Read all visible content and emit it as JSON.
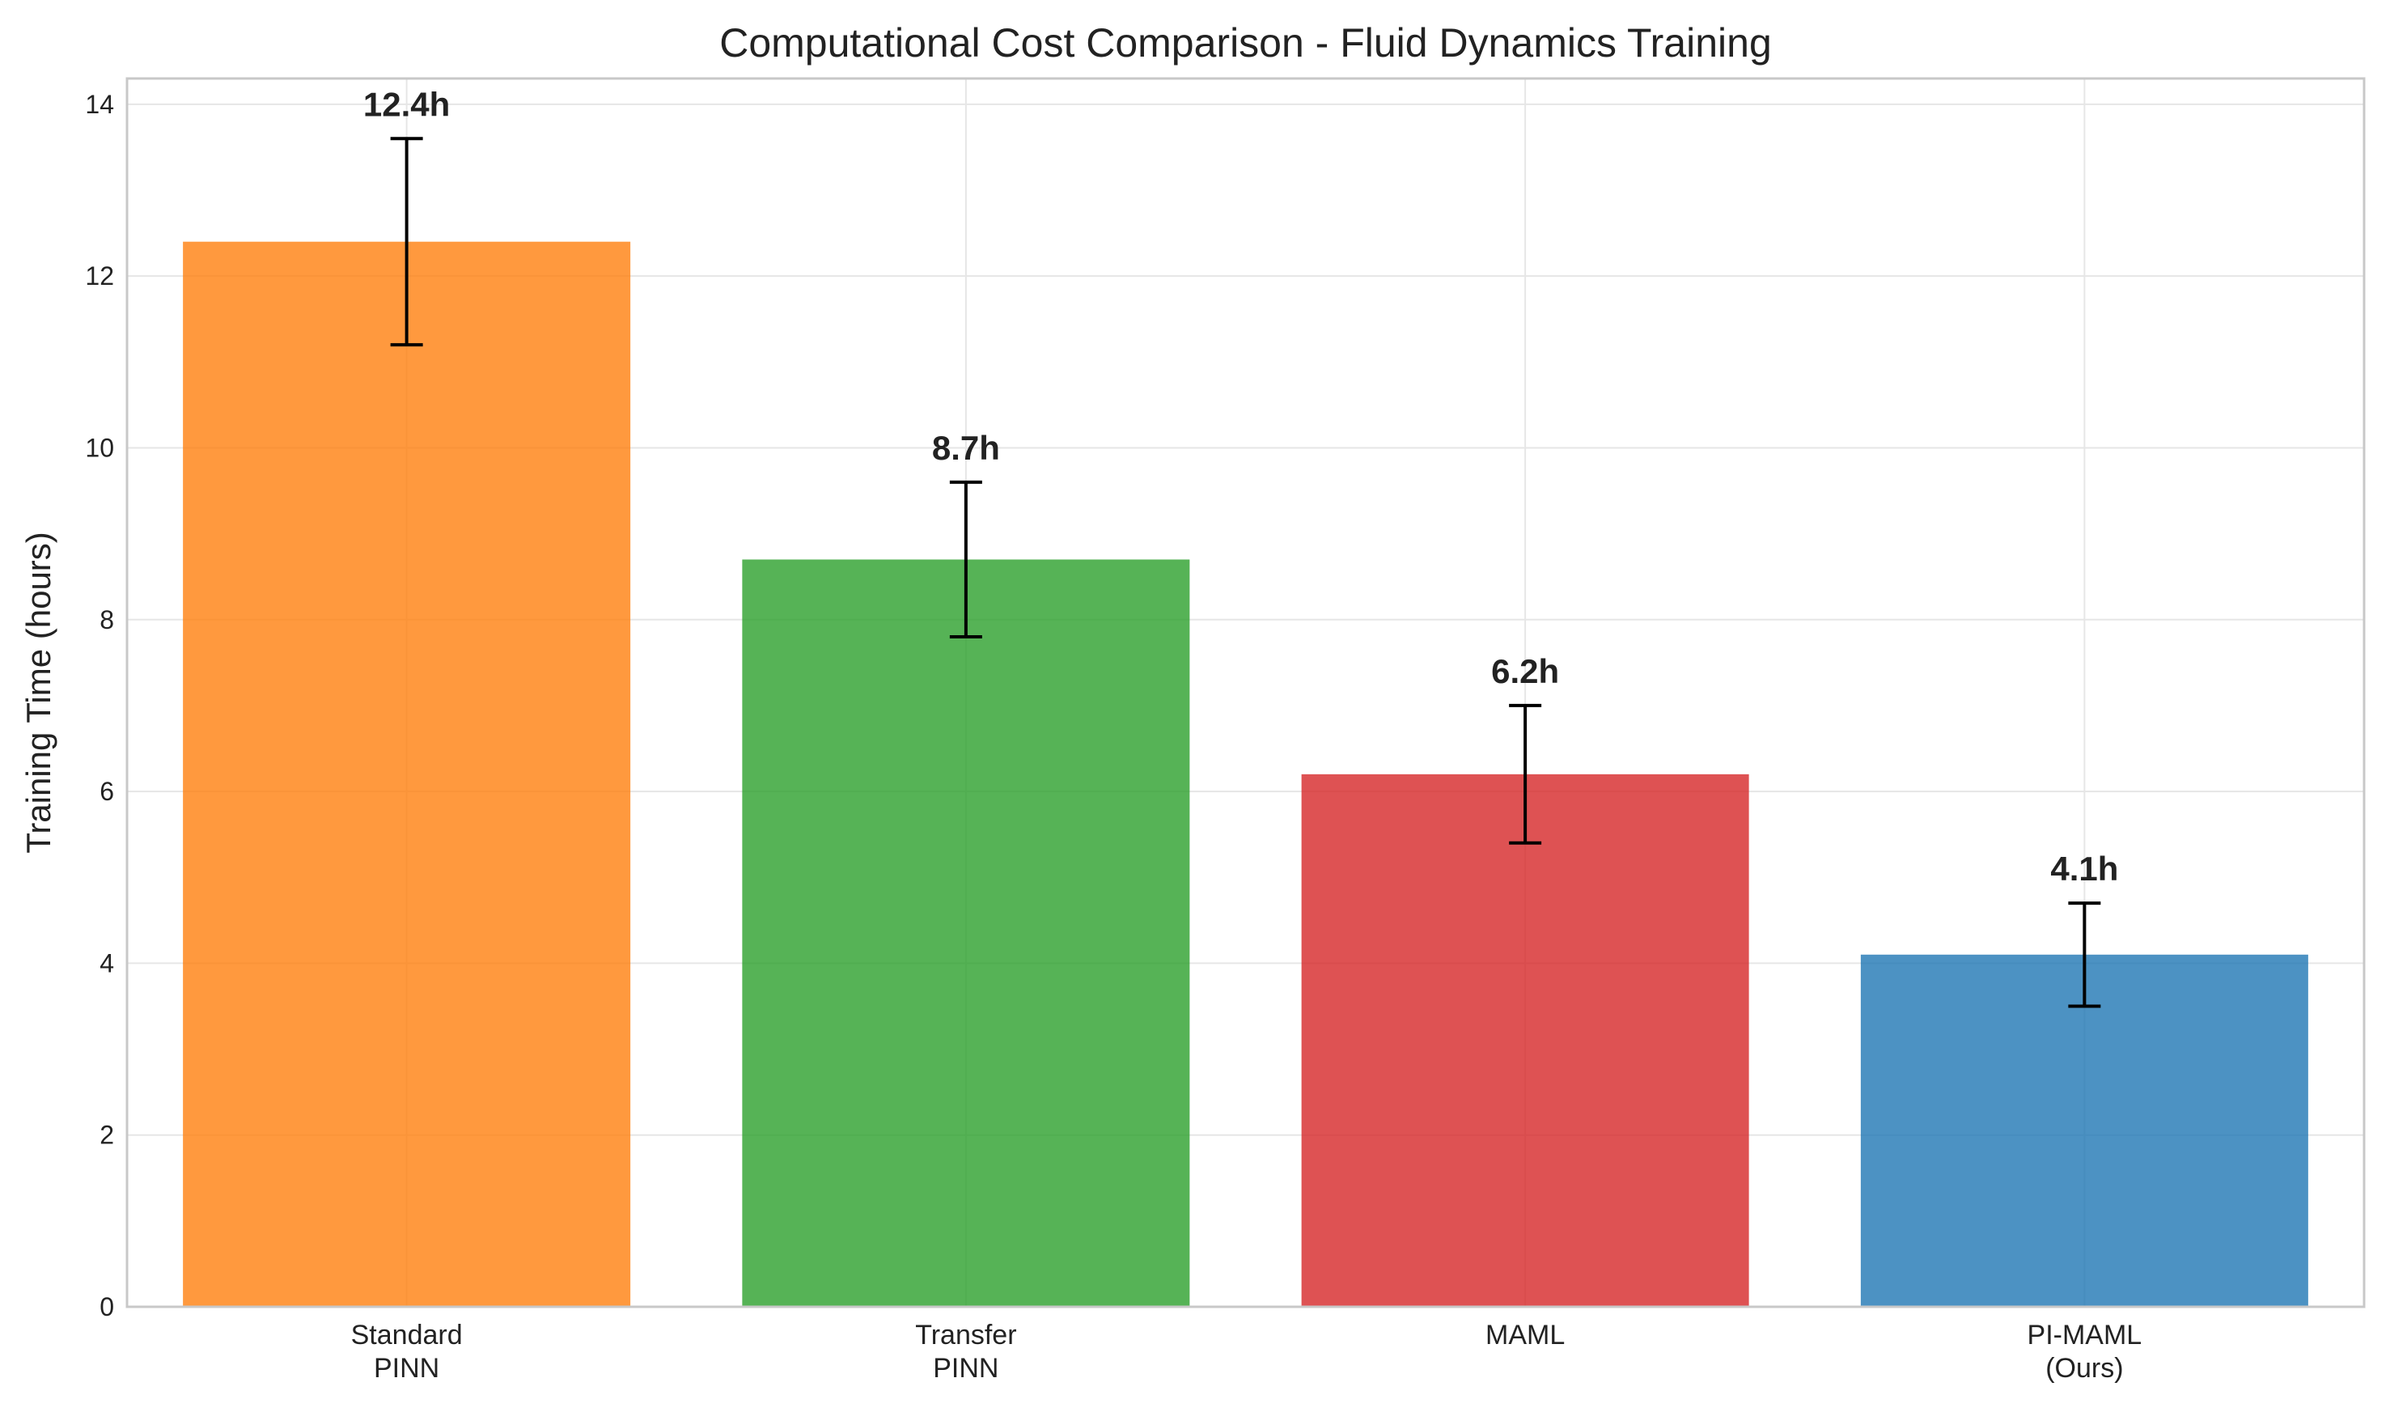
{
  "chart_data": {
    "type": "bar",
    "title": "Computational Cost Comparison - Fluid Dynamics Training",
    "xlabel": "",
    "ylabel": "Training Time (hours)",
    "ylim": [
      0,
      14.3
    ],
    "yticks": [
      0,
      2,
      4,
      6,
      8,
      10,
      12,
      14
    ],
    "grid": true,
    "categories": [
      [
        "Standard",
        "PINN"
      ],
      [
        "Transfer",
        "PINN"
      ],
      [
        "MAML"
      ],
      [
        "PI-MAML",
        "(Ours)"
      ]
    ],
    "values": [
      12.4,
      8.7,
      6.2,
      4.1
    ],
    "error_low": [
      11.2,
      7.8,
      5.4,
      3.5
    ],
    "error_high": [
      13.6,
      9.6,
      7.0,
      4.7
    ],
    "value_labels": [
      "12.4h",
      "8.7h",
      "6.2h",
      "4.1h"
    ],
    "colors": [
      "#ff7f0e",
      "#2ca02c",
      "#d62728",
      "#1f77b4"
    ],
    "bar_opacity": 0.8,
    "error_color": "#000000"
  }
}
